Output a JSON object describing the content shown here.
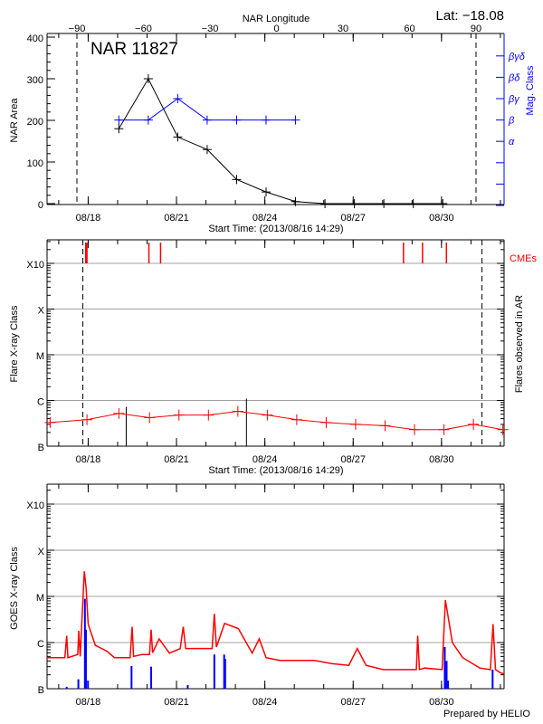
{
  "header": {
    "lat_label": "Lat: −18.08",
    "footer": "Prepared by HELIO"
  },
  "colors": {
    "area": "#000000",
    "mag": "#0000ff",
    "flare": "#ff0000",
    "cme": "#ff0000",
    "goes": "#ff0000",
    "goes_bars": "#0000ff",
    "grid": "#a0a0a0"
  },
  "chart_data": [
    {
      "type": "line",
      "title": "NAR 11827",
      "xlabel": "Start Time: (2013/08/16 14:29)",
      "ylabel": "NAR Area",
      "y2label": "Mag. Class",
      "top_axis_label": "NAR Longitude",
      "top_ticks": [
        "-90",
        "-60",
        "-30",
        "0",
        "30",
        "60",
        "90"
      ],
      "xlim": [
        "2013-08-16T14:29",
        "2013-09-01T03:00"
      ],
      "x_ticks": [
        "08/18",
        "08/21",
        "08/24",
        "08/27",
        "08/30"
      ],
      "ylim": [
        0,
        400
      ],
      "y_ticks": [
        "0",
        "100",
        "200",
        "300",
        "400"
      ],
      "y2_categories": [
        "",
        "",
        "",
        "α",
        "β",
        "βγ",
        "βδ",
        "βγδ"
      ],
      "limb_longitudes": [
        -90,
        90
      ],
      "series": [
        {
          "key": "area",
          "x": [
            "2013-08-19T01:00",
            "2013-08-20T01:00",
            "2013-08-21T01:00",
            "2013-08-22T01:00",
            "2013-08-23T01:00",
            "2013-08-24T01:00",
            "2013-08-25T01:00",
            "2013-08-26T01:00",
            "2013-08-27T01:00",
            "2013-08-28T01:00",
            "2013-08-29T01:00",
            "2013-08-30T01:00"
          ],
          "values": [
            180,
            300,
            160,
            130,
            58,
            28,
            5,
            0,
            0,
            0,
            0,
            0
          ]
        },
        {
          "key": "mag_class",
          "x": [
            "2013-08-19T01:00",
            "2013-08-20T01:00",
            "2013-08-21T01:00",
            "2013-08-22T01:00",
            "2013-08-23T01:00",
            "2013-08-24T01:00",
            "2013-08-25T01:00"
          ],
          "values": [
            "β",
            "β",
            "βγ",
            "β",
            "β",
            "β",
            "β"
          ]
        }
      ]
    },
    {
      "type": "line",
      "xlabel": "Start Time: (2013/08/16 14:29)",
      "ylabel": "Flare X-ray Class",
      "y2label": "Flares observed in AR",
      "cme_label": "CMEs",
      "xlim": [
        "2013-08-16T14:29",
        "2013-09-01T03:00"
      ],
      "x_ticks": [
        "08/18",
        "08/21",
        "08/24",
        "08/27",
        "08/30"
      ],
      "y_scale": "log",
      "y_ticks": [
        "B",
        "C",
        "M",
        "X",
        "X10"
      ],
      "grid": true,
      "limb_times": [
        "2013-08-17T19:40",
        "2013-08-31T09:00"
      ],
      "background_series": {
        "x": [
          "2013-08-16T17:00",
          "2013-08-17T23:00",
          "2013-08-19T01:00",
          "2013-08-20T02:00",
          "2013-08-21T02:00",
          "2013-08-22T02:00",
          "2013-08-23T02:00",
          "2013-08-24T02:00",
          "2013-08-25T02:00",
          "2013-08-26T02:00",
          "2013-08-27T02:00",
          "2013-08-28T02:00",
          "2013-08-29T02:00",
          "2013-08-30T02:00",
          "2013-08-31T02:00",
          "2013-09-01T02:00"
        ],
        "values": [
          "B3.3",
          "B3.8",
          "B5.2",
          "B4.2",
          "B4.8",
          "B4.8",
          "B5.8",
          "B4.8",
          "B3.8",
          "B3.3",
          "B3.0",
          "B2.8",
          "B2.3",
          "B2.3",
          "B3.0",
          "B2.3"
        ]
      },
      "flares": [
        {
          "time": "2013-08-19T07:00",
          "class": "B7.2"
        },
        {
          "time": "2013-08-23T09:00",
          "class": "C1.1"
        }
      ],
      "cmes": [
        "2013-08-17T22:00",
        "2013-08-17T23:00",
        "2013-08-20T01:30",
        "2013-08-20T11:00",
        "2013-08-28T17:00",
        "2013-08-29T08:30",
        "2013-08-30T04:00"
      ]
    },
    {
      "type": "line",
      "ylabel": "GOES X-ray Class",
      "xlim": [
        "2013-08-16T14:29",
        "2013-09-01T03:00"
      ],
      "x_ticks": [
        "08/18",
        "08/21",
        "08/24",
        "08/27",
        "08/30"
      ],
      "y_scale": "log",
      "y_ticks": [
        "B",
        "C",
        "M",
        "X",
        "X10"
      ],
      "grid": true,
      "series": [
        {
          "key": "goes_flux",
          "x": [
            "2013-08-16T14:29",
            "2013-08-17T05:00",
            "2013-08-17T06:30",
            "2013-08-17T07:30",
            "2013-08-17T15:30",
            "2013-08-17T16:20",
            "2013-08-17T17:30",
            "2013-08-17T20:50",
            "2013-08-17T22:20",
            "2013-08-18T00:00",
            "2013-08-18T05:50",
            "2013-08-18T15:40",
            "2013-08-18T21:20",
            "2013-08-19T10:10",
            "2013-08-19T11:50",
            "2013-08-19T13:00",
            "2013-08-19T19:40",
            "2013-08-20T02:00",
            "2013-08-20T03:20",
            "2013-08-20T04:30",
            "2013-08-20T09:50",
            "2013-08-20T18:10",
            "2013-08-21T03:00",
            "2013-08-21T05:30",
            "2013-08-21T07:30",
            "2013-08-21T16:50",
            "2013-08-22T05:00",
            "2013-08-22T06:50",
            "2013-08-22T08:30",
            "2013-08-22T15:10",
            "2013-08-23T02:25",
            "2013-08-23T13:40",
            "2013-08-23T19:25",
            "2013-08-24T01:00",
            "2013-08-24T12:15",
            "2013-08-25T02:25",
            "2013-08-25T16:20",
            "2013-08-26T06:30",
            "2013-08-26T20:25",
            "2013-08-27T03:20",
            "2013-08-27T10:30",
            "2013-08-28T00:30",
            "2013-08-28T14:40",
            "2013-08-29T03:30",
            "2013-08-29T04:35",
            "2013-08-29T06:00",
            "2013-08-29T10:20",
            "2013-08-30T00:30",
            "2013-08-30T03:10",
            "2013-08-30T08:50",
            "2013-08-30T17:15",
            "2013-08-31T07:15",
            "2013-08-31T15:50",
            "2013-08-31T18:00",
            "2013-08-31T20:00",
            "2013-09-01T00:10",
            "2013-09-01T03:00"
          ],
          "values": [
            4.7e-07,
            4.7e-07,
            1.4e-06,
            4.7e-07,
            5.5e-07,
            1.8e-06,
            5e-07,
            3.5e-05,
            1.5e-05,
            2.5e-06,
            8.7e-07,
            6.4e-07,
            4.7e-07,
            4.7e-07,
            2.2e-06,
            5e-07,
            5.5e-07,
            5.5e-07,
            1.9e-06,
            6e-07,
            1.2e-06,
            5.9e-07,
            7.4e-07,
            2.2e-06,
            7.4e-07,
            7.4e-07,
            7.4e-07,
            4.2e-06,
            8e-07,
            2.6e-06,
            2e-06,
            5.9e-07,
            1.2e-06,
            4.7e-07,
            4.1e-07,
            4.1e-07,
            4.1e-07,
            3.5e-07,
            3.2e-07,
            7.4e-07,
            3.2e-07,
            2.6e-07,
            2.6e-07,
            2.6e-07,
            1.4e-06,
            2.6e-07,
            2.8e-07,
            2.6e-07,
            8.3e-06,
            1e-06,
            4.7e-07,
            2.8e-07,
            2.6e-07,
            2.5e-06,
            2.6e-07,
            2.2e-07,
            2.1e-07
          ]
        },
        {
          "key": "blue_bars",
          "x": [
            "2013-08-17T06:30",
            "2013-08-17T16:00",
            "2013-08-17T21:20",
            "2013-08-17T22:10",
            "2013-08-17T23:50",
            "2013-08-18T13:40",
            "2013-08-19T11:20",
            "2013-08-20T03:20",
            "2013-08-21T09:10",
            "2013-08-22T06:50",
            "2013-08-22T14:50",
            "2013-08-22T15:40",
            "2013-08-30T02:40",
            "2013-08-30T04:10",
            "2013-08-30T05:20",
            "2013-08-31T17:40"
          ],
          "values": [
            1.1e-07,
            1.6e-07,
            8.9e-06,
            1.9e-06,
            1.5e-07,
            1e-07,
            3.1e-07,
            3e-07,
            1.2e-07,
            5.5e-07,
            5.5e-07,
            4.4e-07,
            8e-07,
            4e-07,
            1.5e-07,
            2.6e-07
          ]
        }
      ]
    }
  ]
}
